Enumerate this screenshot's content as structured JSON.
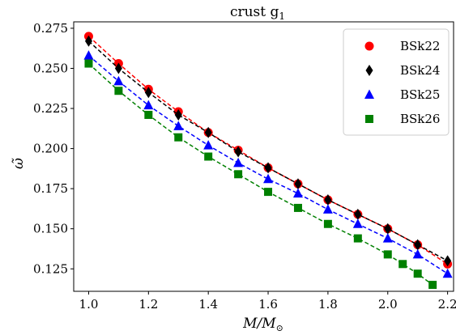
{
  "chart_data": {
    "type": "scatter",
    "title": "crust g",
    "title_sub": "1",
    "xlabel": "M/M",
    "xlabel_sub": "⊙",
    "ylabel": "ω̃",
    "xlim": [
      0.95,
      2.22
    ],
    "ylim": [
      0.111,
      0.279
    ],
    "x_ticks": [
      1.0,
      1.2,
      1.4,
      1.6,
      1.8,
      2.0,
      2.2
    ],
    "x_tick_labels": [
      "1.0",
      "1.2",
      "1.4",
      "1.6",
      "1.8",
      "2.0",
      "2.2"
    ],
    "y_ticks": [
      0.125,
      0.15,
      0.175,
      0.2,
      0.225,
      0.25,
      0.275
    ],
    "y_tick_labels": [
      "0.125",
      "0.150",
      "0.175",
      "0.200",
      "0.225",
      "0.250",
      "0.275"
    ],
    "grid": false,
    "legend_placement": "top-right",
    "series": [
      {
        "name": "BSk22",
        "color": "#ff0000",
        "marker": "circle",
        "x": [
          1.0,
          1.1,
          1.2,
          1.3,
          1.4,
          1.5,
          1.6,
          1.7,
          1.8,
          1.9,
          2.0,
          2.1,
          2.2
        ],
        "y": [
          0.27,
          0.253,
          0.237,
          0.223,
          0.21,
          0.199,
          0.188,
          0.178,
          0.168,
          0.159,
          0.15,
          0.14,
          0.128
        ]
      },
      {
        "name": "BSk24",
        "color": "#000000",
        "marker": "diamond",
        "x": [
          1.0,
          1.1,
          1.2,
          1.3,
          1.4,
          1.5,
          1.6,
          1.7,
          1.8,
          1.9,
          2.0,
          2.1,
          2.2
        ],
        "y": [
          0.267,
          0.25,
          0.235,
          0.221,
          0.21,
          0.198,
          0.188,
          0.178,
          0.168,
          0.159,
          0.15,
          0.14,
          0.13
        ]
      },
      {
        "name": "BSk25",
        "color": "#0000ff",
        "marker": "triangle",
        "x": [
          1.0,
          1.1,
          1.2,
          1.3,
          1.4,
          1.5,
          1.6,
          1.7,
          1.8,
          1.9,
          2.0,
          2.1,
          2.2
        ],
        "y": [
          0.258,
          0.242,
          0.227,
          0.214,
          0.202,
          0.191,
          0.181,
          0.172,
          0.162,
          0.153,
          0.144,
          0.134,
          0.122
        ]
      },
      {
        "name": "BSk26",
        "color": "#008000",
        "marker": "square",
        "x": [
          1.0,
          1.1,
          1.2,
          1.3,
          1.4,
          1.5,
          1.6,
          1.7,
          1.8,
          1.9,
          2.0,
          2.05,
          2.1,
          2.15
        ],
        "y": [
          0.253,
          0.236,
          0.221,
          0.207,
          0.195,
          0.184,
          0.173,
          0.163,
          0.153,
          0.144,
          0.134,
          0.128,
          0.122,
          0.115
        ]
      }
    ]
  }
}
